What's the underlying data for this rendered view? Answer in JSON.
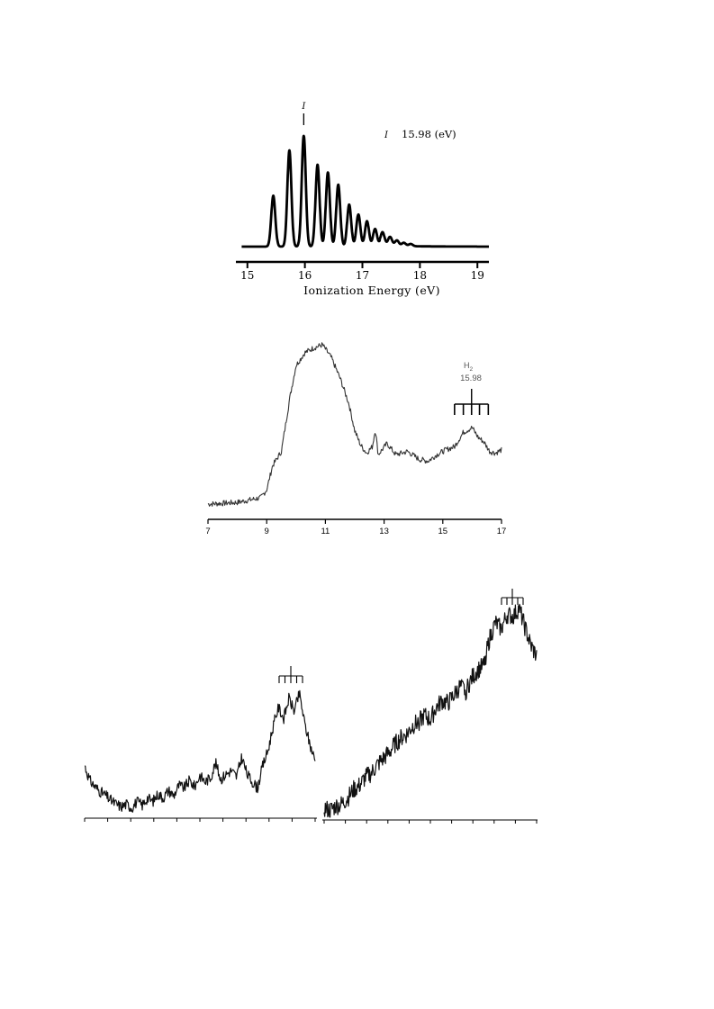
{
  "chart_data": [
    {
      "type": "line",
      "xlabel": "Ionization Energy (eV)",
      "ylabel": "",
      "xlim": [
        14.8,
        19.2
      ],
      "x_ticks": [
        15,
        16,
        17,
        18,
        19
      ],
      "grid": false,
      "annotation": {
        "marker": "I",
        "legend_marker": "I",
        "legend_text": "15.98  (eV)",
        "x": 15.98
      },
      "peaks": {
        "x": [
          15.45,
          15.73,
          15.98,
          16.22,
          16.4,
          16.58,
          16.77,
          16.93,
          17.08,
          17.22,
          17.35,
          17.48,
          17.6,
          17.72,
          17.84
        ],
        "values": [
          0.46,
          0.87,
          1.0,
          0.74,
          0.67,
          0.56,
          0.38,
          0.29,
          0.23,
          0.16,
          0.12,
          0.08,
          0.05,
          0.03,
          0.02
        ]
      },
      "baseline": 0.0
    },
    {
      "type": "line",
      "xlabel": "",
      "ylabel": "",
      "xlim": [
        7,
        17
      ],
      "x_ticks": [
        7,
        9,
        11,
        13,
        15,
        17
      ],
      "grid": false,
      "annotation": {
        "label": "H",
        "subscript": "2",
        "value": "15.98",
        "x": 15.98,
        "comb_x": [
          15.4,
          15.7,
          15.98,
          16.25,
          16.55
        ]
      },
      "series": [
        {
          "x": [
            7.0,
            8.0,
            8.8,
            9.0,
            9.2,
            9.5,
            9.8,
            10.0,
            10.3,
            10.6,
            10.9,
            11.2,
            11.5,
            11.8,
            12.0,
            12.2,
            12.4,
            12.6,
            12.7,
            12.8,
            13.1,
            13.4,
            13.8,
            14.2,
            14.5,
            14.8,
            15.1,
            15.4,
            15.7,
            16.0,
            16.2,
            16.4,
            16.6,
            16.8,
            17.0
          ],
          "values": [
            0.0,
            0.01,
            0.04,
            0.09,
            0.24,
            0.33,
            0.68,
            0.87,
            0.95,
            0.98,
            1.0,
            0.92,
            0.79,
            0.63,
            0.46,
            0.37,
            0.32,
            0.36,
            0.47,
            0.31,
            0.38,
            0.31,
            0.33,
            0.28,
            0.27,
            0.31,
            0.34,
            0.36,
            0.45,
            0.48,
            0.42,
            0.39,
            0.33,
            0.32,
            0.34
          ]
        }
      ]
    },
    {
      "type": "line",
      "xlabel": "",
      "ylabel": "",
      "x_ticks_count": 11,
      "grid": false,
      "annotation": {
        "comb_count": 5
      },
      "series": [
        {
          "values": [
            0.38,
            0.26,
            0.21,
            0.17,
            0.14,
            0.1,
            0.07,
            0.05,
            0.07,
            0.04,
            0.09,
            0.06,
            0.12,
            0.09,
            0.15,
            0.12,
            0.18,
            0.14,
            0.22,
            0.2,
            0.26,
            0.21,
            0.3,
            0.25,
            0.28,
            0.4,
            0.27,
            0.31,
            0.34,
            0.29,
            0.45,
            0.31,
            0.25,
            0.2,
            0.38,
            0.5,
            0.7,
            0.85,
            0.76,
            0.92,
            0.82,
            0.96,
            0.72,
            0.55,
            0.42
          ]
        }
      ]
    },
    {
      "type": "line",
      "xlabel": "",
      "ylabel": "",
      "x_ticks_count": 11,
      "grid": false,
      "annotation": {
        "comb_count": 5
      },
      "series": [
        {
          "values": [
            0.03,
            0.02,
            0.04,
            0.05,
            0.08,
            0.12,
            0.14,
            0.18,
            0.2,
            0.24,
            0.27,
            0.3,
            0.34,
            0.37,
            0.39,
            0.43,
            0.45,
            0.48,
            0.46,
            0.52,
            0.55,
            0.54,
            0.58,
            0.62,
            0.6,
            0.66,
            0.7,
            0.72,
            0.85,
            0.93,
            0.9,
            0.97,
            0.96,
            1.0,
            0.91,
            0.82,
            0.77
          ]
        }
      ]
    }
  ]
}
